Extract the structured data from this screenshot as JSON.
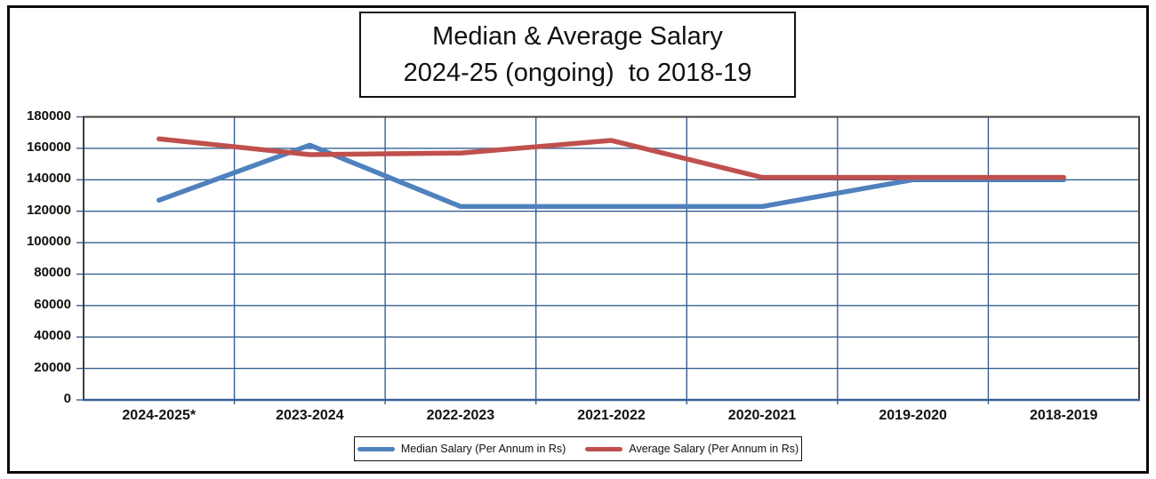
{
  "title": {
    "line1": "Median & Average Salary",
    "line2": "2024-25 (ongoing)  to 2018-19"
  },
  "chart_data": {
    "type": "line",
    "title": "Median & Average Salary 2024-25 (ongoing) to 2018-19",
    "categories": [
      "2024-2025*",
      "2023-2024",
      "2022-2023",
      "2021-2022",
      "2020-2021",
      "2019-2020",
      "2018-2019"
    ],
    "series": [
      {
        "name": "Median Salary (Per Annum in Rs)",
        "color": "#4F81BD",
        "values": [
          127000,
          162000,
          123000,
          123000,
          123000,
          140000,
          140000
        ]
      },
      {
        "name": "Average Salary (Per Annum in Rs)",
        "color": "#C0504D",
        "values": [
          166000,
          156000,
          157000,
          165000,
          141500,
          141500,
          141500
        ]
      }
    ],
    "xlabel": "",
    "ylabel": "",
    "ylim": [
      0,
      180000
    ],
    "ytick_step": 20000,
    "ytick_labels": [
      "180000",
      "160000",
      "140000",
      "120000",
      "100000",
      "80000",
      "60000",
      "40000",
      "20000",
      "0"
    ],
    "grid": "on",
    "gridline_color": "#366092",
    "plot_border_color": "#404040",
    "legend_position": "bottom"
  }
}
